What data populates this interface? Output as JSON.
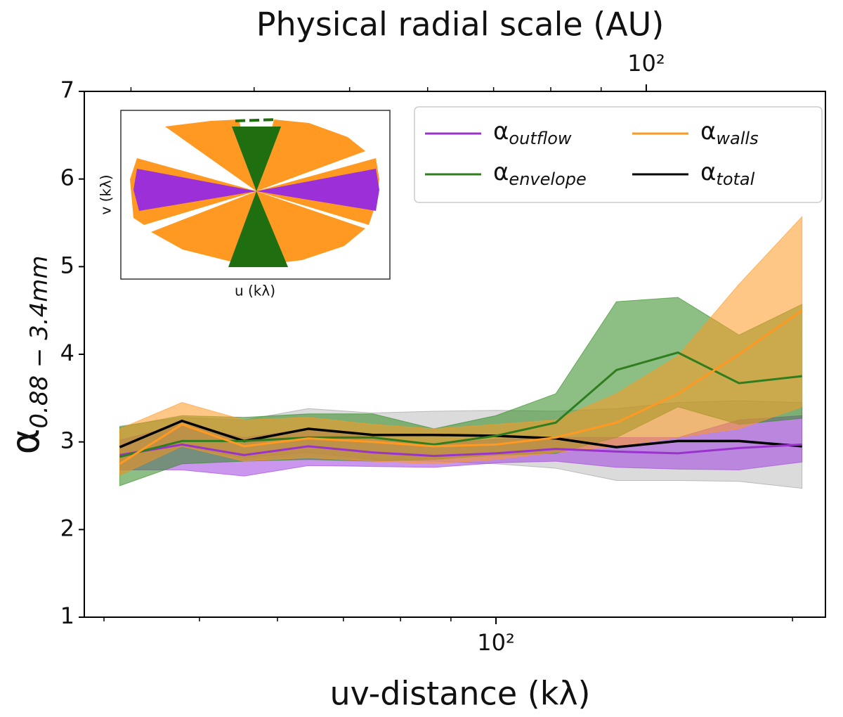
{
  "chart_data": {
    "type": "line",
    "top_axis_label": "Physical radial scale (AU)",
    "x_label": "uv-distance (kλ)",
    "y_label": "α0.88 − 3.4mm",
    "x_scale": "log",
    "xlim": [
      38.2,
      216
    ],
    "xticks": [
      {
        "value": 100,
        "label": "10²"
      }
    ],
    "xminorticks": [
      40,
      50,
      60,
      70,
      80,
      90,
      200
    ],
    "x2lim": [
      26.9,
      152
    ],
    "x2ticks": [
      {
        "value": 100,
        "label": "10²"
      }
    ],
    "x2minorticks": [
      30,
      40,
      50,
      60,
      70,
      80,
      90
    ],
    "ylim": [
      1,
      7
    ],
    "yticks": [
      1,
      2,
      3,
      4,
      5,
      6,
      7
    ],
    "legend": "upper right",
    "x": [
      41.5,
      48,
      55.5,
      64.5,
      75,
      86.5,
      100,
      115,
      132.5,
      153,
      176.5,
      204.5
    ],
    "series": [
      {
        "name": "αtotal",
        "color": "#000000",
        "band_color": "#999999",
        "values": [
          2.94,
          3.24,
          3.01,
          3.15,
          3.08,
          3.08,
          3.07,
          3.04,
          2.94,
          3.01,
          3.01,
          2.95
        ],
        "lower": [
          2.62,
          2.95,
          2.82,
          2.88,
          2.8,
          2.78,
          2.75,
          2.7,
          2.56,
          2.56,
          2.55,
          2.47
        ],
        "upper": [
          3.18,
          3.28,
          3.25,
          3.38,
          3.33,
          3.35,
          3.36,
          3.35,
          3.38,
          3.45,
          3.47,
          3.45
        ]
      },
      {
        "name": "αoutflow",
        "color": "#9933cc",
        "band_color": "#a040e0",
        "values": [
          2.85,
          2.97,
          2.85,
          2.95,
          2.88,
          2.84,
          2.87,
          2.92,
          2.89,
          2.87,
          2.93,
          2.97
        ],
        "lower": [
          2.68,
          2.68,
          2.61,
          2.73,
          2.72,
          2.71,
          2.76,
          2.78,
          2.71,
          2.69,
          2.68,
          2.77
        ],
        "upper": [
          3.02,
          3.2,
          3.05,
          3.15,
          3.05,
          2.98,
          3.03,
          3.05,
          3.05,
          3.05,
          3.25,
          3.3
        ]
      },
      {
        "name": "αenvelope",
        "color": "#2f7d1f",
        "band_color": "#2f8a1f",
        "values": [
          2.83,
          3.01,
          3.01,
          3.05,
          3.05,
          2.97,
          3.07,
          3.22,
          3.82,
          4.02,
          3.67,
          3.75
        ],
        "lower": [
          2.5,
          2.75,
          2.78,
          2.8,
          2.78,
          2.8,
          2.85,
          2.87,
          3.05,
          3.4,
          3.2,
          3.27
        ],
        "upper": [
          3.17,
          3.3,
          3.28,
          3.32,
          3.32,
          3.15,
          3.3,
          3.55,
          4.6,
          4.65,
          4.22,
          4.57
        ]
      },
      {
        "name": "αwalls",
        "color": "#ff9922",
        "band_color": "#ff9922",
        "values": [
          2.75,
          3.2,
          2.95,
          3.04,
          3.0,
          2.95,
          2.97,
          3.05,
          3.22,
          3.55,
          4.0,
          4.5
        ],
        "lower": [
          2.62,
          2.95,
          2.78,
          2.82,
          2.78,
          2.75,
          2.8,
          2.88,
          2.95,
          3.05,
          3.15,
          3.4
        ],
        "upper": [
          3.15,
          3.45,
          3.25,
          3.28,
          3.2,
          3.15,
          3.2,
          3.25,
          3.55,
          3.98,
          4.8,
          5.57
        ]
      }
    ],
    "legend_order": [
      1,
      2,
      3,
      0
    ],
    "inset": {
      "xlabel": "u (kλ)",
      "ylabel": "v (kλ)"
    }
  }
}
